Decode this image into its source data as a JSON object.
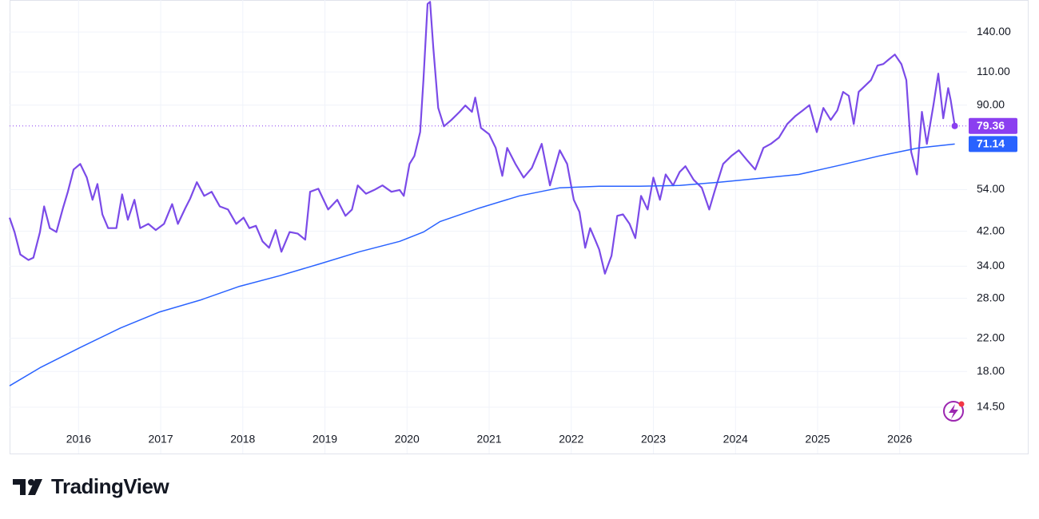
{
  "chart_data": {
    "type": "line",
    "yscale": "log",
    "grid": true,
    "xlim": [
      2015.16,
      2026.82
    ],
    "xticks": [
      2016,
      2017,
      2018,
      2019,
      2020,
      2021,
      2022,
      2023,
      2024,
      2025,
      2026
    ],
    "ylim": [
      10.96,
      169.9
    ],
    "yticks": [
      {
        "value": 140,
        "label": "140.00"
      },
      {
        "value": 110,
        "label": "110.00"
      },
      {
        "value": 90,
        "label": "90.00"
      },
      {
        "value": 54,
        "label": "54.00"
      },
      {
        "value": 42,
        "label": "42.00"
      },
      {
        "value": 34,
        "label": "34.00"
      },
      {
        "value": 28,
        "label": "28.00"
      },
      {
        "value": 22,
        "label": "22.00"
      },
      {
        "value": 18,
        "label": "18.00"
      },
      {
        "value": 14.5,
        "label": "14.50"
      }
    ],
    "series": [
      {
        "color": "#7b4be8",
        "badge_color": "#8b3ff0",
        "x": [
          2015.16,
          2015.22,
          2015.29,
          2015.39,
          2015.45,
          2015.53,
          2015.58,
          2015.65,
          2015.73,
          2015.81,
          2015.87,
          2015.94,
          2016.02,
          2016.1,
          2016.17,
          2016.23,
          2016.29,
          2016.36,
          2016.46,
          2016.53,
          2016.6,
          2016.68,
          2016.75,
          2016.85,
          2016.94,
          2017.04,
          2017.14,
          2017.21,
          2017.3,
          2017.36,
          2017.44,
          2017.53,
          2017.62,
          2017.72,
          2017.82,
          2017.92,
          2018.01,
          2018.08,
          2018.16,
          2018.24,
          2018.32,
          2018.4,
          2018.47,
          2018.57,
          2018.67,
          2018.76,
          2018.82,
          2018.92,
          2019.04,
          2019.15,
          2019.25,
          2019.33,
          2019.4,
          2019.5,
          2019.6,
          2019.7,
          2019.81,
          2019.91,
          2019.96,
          2020.03,
          2020.09,
          2020.16,
          2020.2,
          2020.25,
          2020.28,
          2020.32,
          2020.38,
          2020.45,
          2020.54,
          2020.64,
          2020.71,
          2020.79,
          2020.83,
          2020.9,
          2021.0,
          2021.08,
          2021.16,
          2021.22,
          2021.32,
          2021.42,
          2021.52,
          2021.64,
          2021.74,
          2021.86,
          2021.95,
          2022.03,
          2022.1,
          2022.17,
          2022.23,
          2022.29,
          2022.34,
          2022.41,
          2022.49,
          2022.56,
          2022.63,
          2022.71,
          2022.78,
          2022.85,
          2022.93,
          2023.0,
          2023.08,
          2023.15,
          2023.24,
          2023.32,
          2023.39,
          2023.49,
          2023.59,
          2023.68,
          2023.75,
          2023.85,
          2023.95,
          2024.04,
          2024.14,
          2024.24,
          2024.34,
          2024.43,
          2024.53,
          2024.63,
          2024.73,
          2024.82,
          2024.9,
          2024.99,
          2025.07,
          2025.16,
          2025.24,
          2025.31,
          2025.38,
          2025.44,
          2025.5,
          2025.57,
          2025.65,
          2025.73,
          2025.8,
          2025.86,
          2025.94,
          2026.02,
          2026.08,
          2026.14,
          2026.21,
          2026.27,
          2026.33,
          2026.41,
          2026.47,
          2026.53,
          2026.59,
          2026.62,
          2026.67
        ],
        "values": [
          45.6,
          41.8,
          36.5,
          35.3,
          35.8,
          41.8,
          48.8,
          42.8,
          41.8,
          48.3,
          53.3,
          61.0,
          63.1,
          58.1,
          50.8,
          55.9,
          46.5,
          42.8,
          42.8,
          52.5,
          45.0,
          50.8,
          42.8,
          43.9,
          42.3,
          43.9,
          49.5,
          43.9,
          48.3,
          51.2,
          56.5,
          52.0,
          53.3,
          48.8,
          47.9,
          43.9,
          45.6,
          42.8,
          43.4,
          39.5,
          38.0,
          42.3,
          37.1,
          41.8,
          41.4,
          39.9,
          53.3,
          54.3,
          47.9,
          50.8,
          46.1,
          47.9,
          55.4,
          52.7,
          53.9,
          55.4,
          53.3,
          53.9,
          52.0,
          63.1,
          66.2,
          76.5,
          104.7,
          166,
          168,
          127,
          88.5,
          79.2,
          82.3,
          86.4,
          89.8,
          86.4,
          94.2,
          78.4,
          75.5,
          69.5,
          58.7,
          69.5,
          63.1,
          58.1,
          61.6,
          71.2,
          55.4,
          68.5,
          63.1,
          50.8,
          47.2,
          38.0,
          42.8,
          39.9,
          37.6,
          32.5,
          36.2,
          46.1,
          46.5,
          43.9,
          40.3,
          52.0,
          47.9,
          58.1,
          50.8,
          59.2,
          55.4,
          60.1,
          62.2,
          57.3,
          54.6,
          47.9,
          53.9,
          63.1,
          66.2,
          68.5,
          64.6,
          61.0,
          69.5,
          71.2,
          74.0,
          80.3,
          84.3,
          87.2,
          90.0,
          76.5,
          88.5,
          82.3,
          87.2,
          97.5,
          95.2,
          80.3,
          97.5,
          100.8,
          104.7,
          114.3,
          115.4,
          118.3,
          122.2,
          115.4,
          104.7,
          67.8,
          59.2,
          86.4,
          71.2,
          90.0,
          108.9,
          83.1,
          99.8,
          92.8,
          79.36
        ]
      },
      {
        "color": "#2962ff",
        "badge_color": "#2962ff",
        "x": [
          2015.16,
          2015.53,
          2016.02,
          2016.51,
          2016.99,
          2017.48,
          2017.96,
          2018.45,
          2018.94,
          2019.42,
          2019.91,
          2020.2,
          2020.4,
          2020.88,
          2021.37,
          2021.86,
          2022.34,
          2022.83,
          2023.32,
          2023.8,
          2024.29,
          2024.77,
          2025.26,
          2025.75,
          2026.23,
          2026.67
        ],
        "values": [
          16.5,
          18.4,
          20.8,
          23.4,
          25.8,
          27.7,
          30.1,
          32.1,
          34.5,
          37.1,
          39.5,
          41.8,
          44.5,
          48.3,
          52.0,
          54.6,
          55.1,
          55.1,
          55.4,
          56.5,
          57.8,
          59.2,
          62.5,
          66.2,
          69.5,
          71.14
        ]
      }
    ]
  },
  "brand": "TradingView"
}
